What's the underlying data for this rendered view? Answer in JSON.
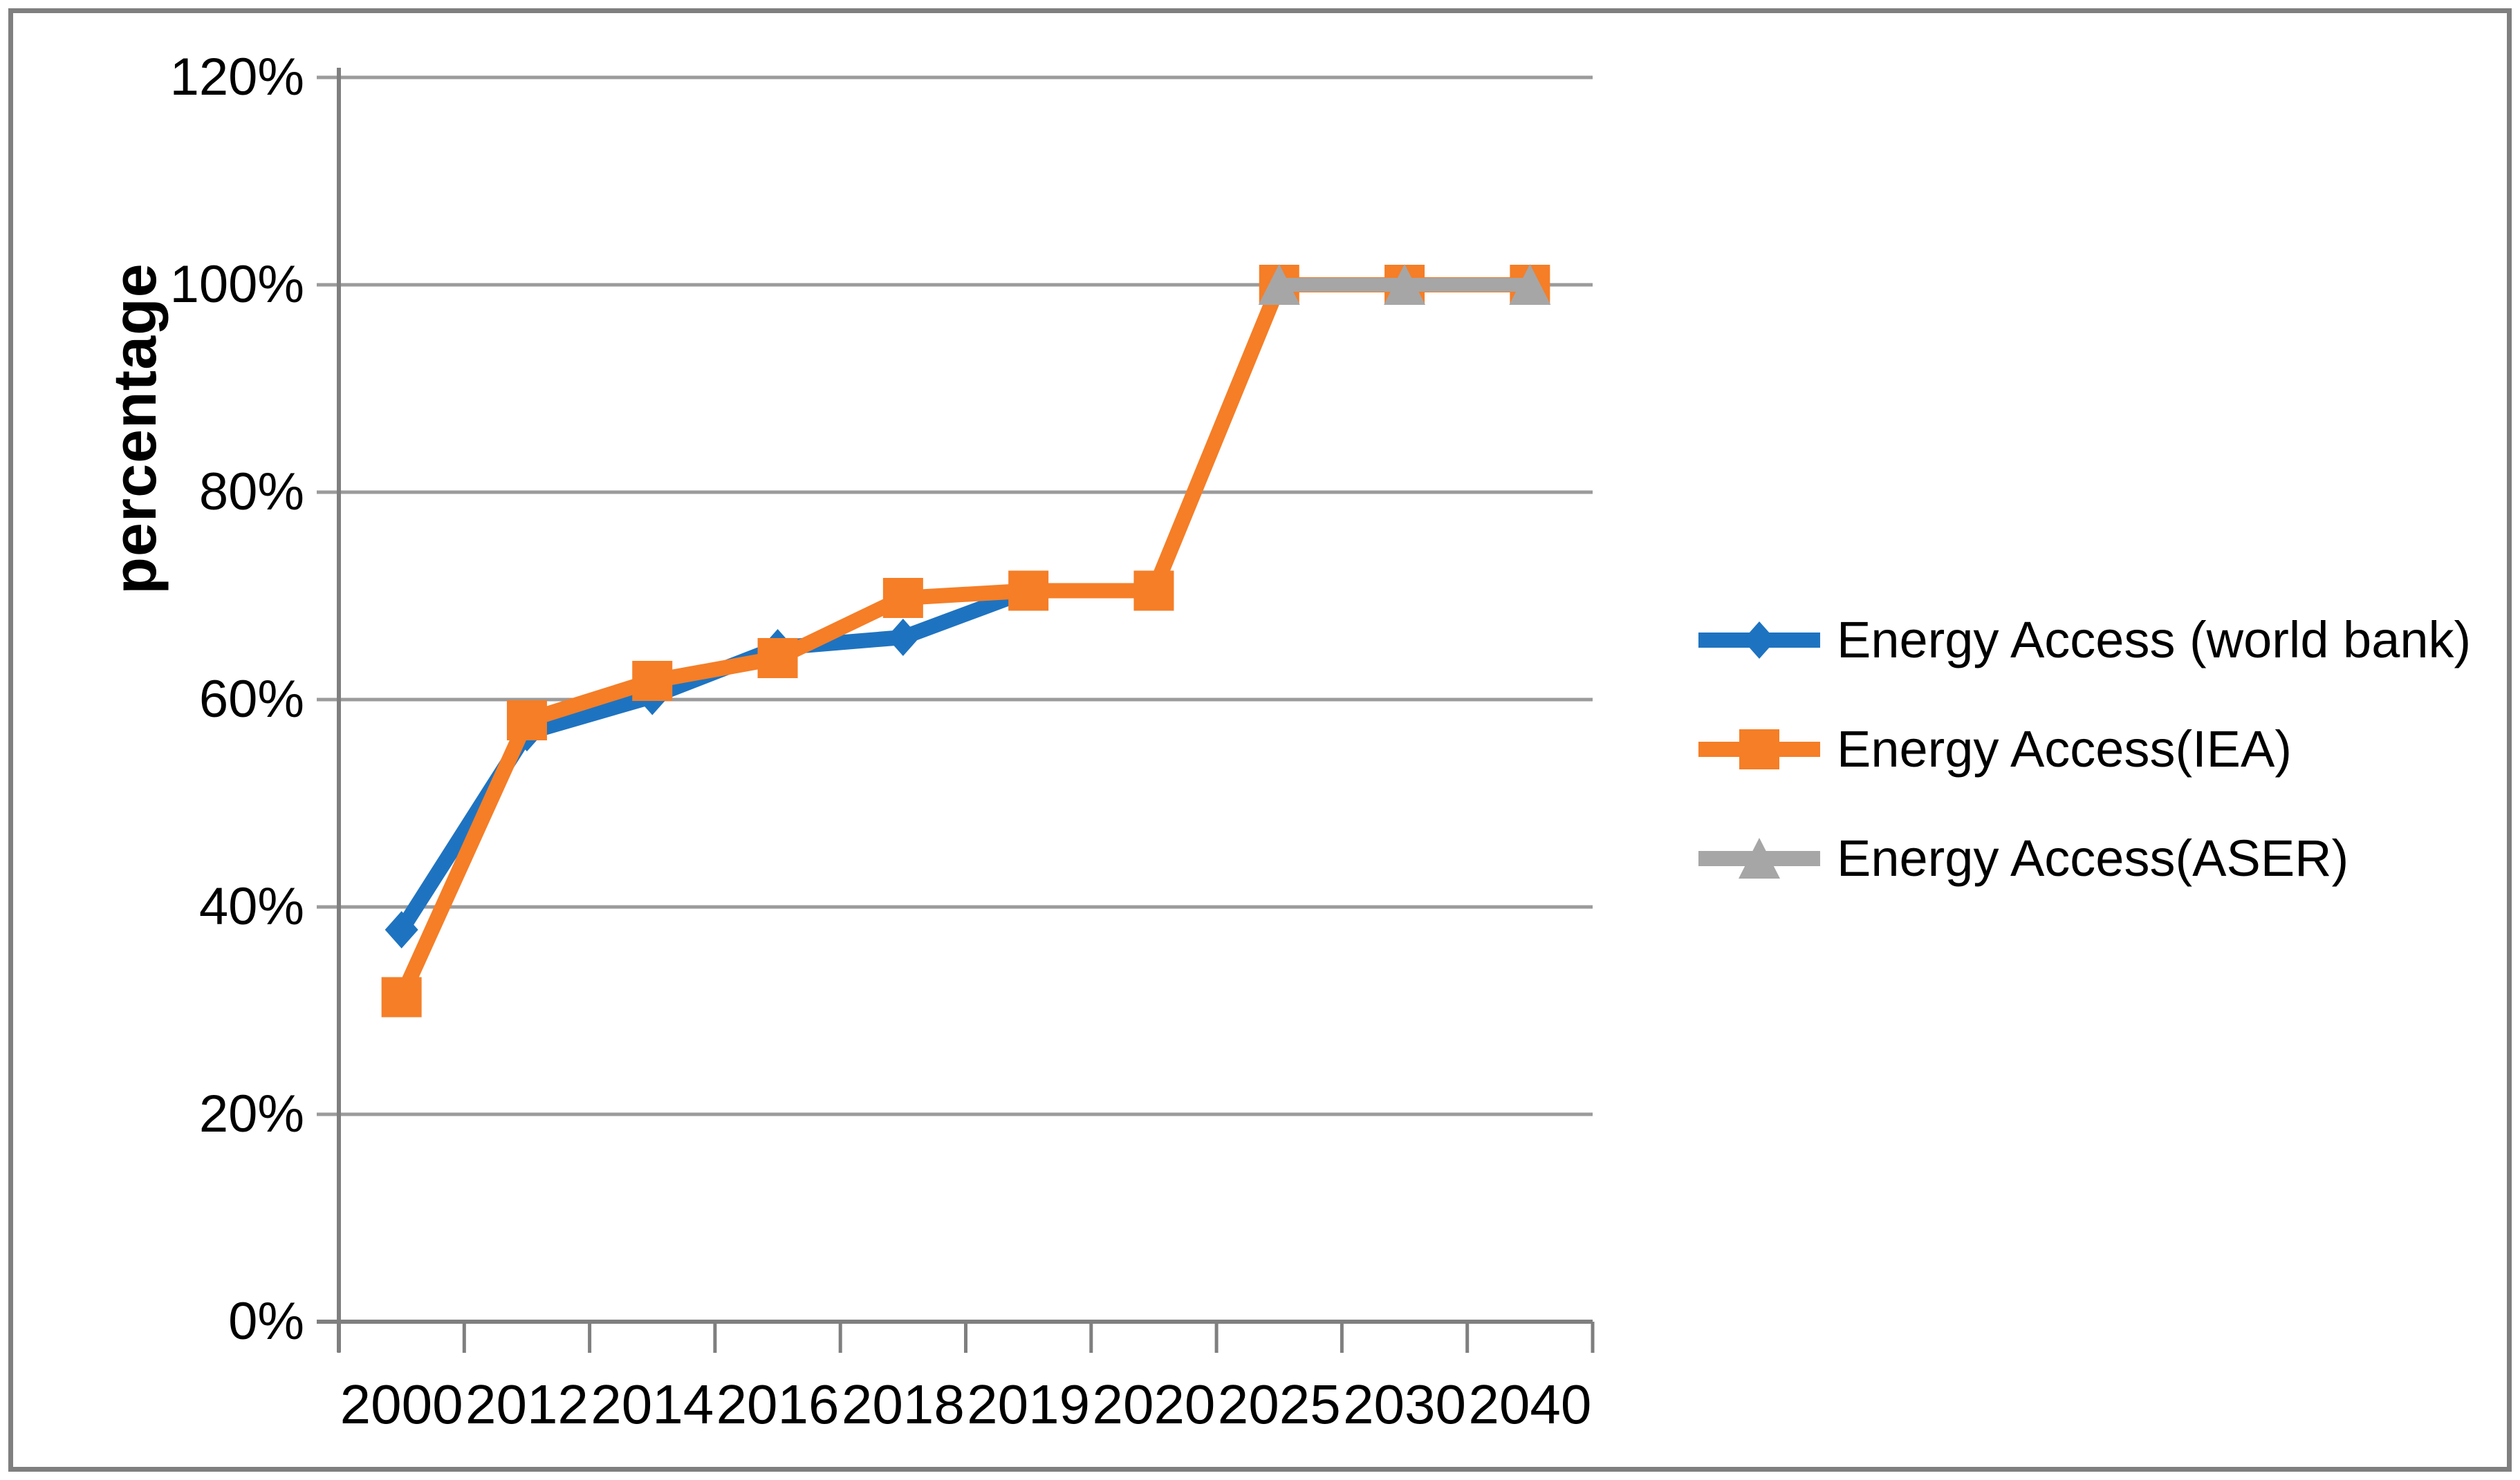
{
  "figure": {
    "background": "#ffffff",
    "border_color": "#7f7f7f"
  },
  "chart_data": {
    "type": "line",
    "title": "",
    "ylabel": "percentage",
    "xlabel": "",
    "ylim": [
      0,
      120
    ],
    "y_tick_step": 20,
    "y_tick_labels": [
      "0%",
      "20%",
      "40%",
      "60%",
      "80%",
      "100%",
      "120%"
    ],
    "categories": [
      "2000",
      "2012",
      "2014",
      "2016",
      "2018",
      "2019",
      "2020",
      "2025",
      "2030",
      "2040"
    ],
    "grid": true,
    "legend_position": "right",
    "axis_color": "#7f7f7f",
    "grid_color": "#9b9b9b",
    "series": [
      {
        "name": "Energy Access (world bank)",
        "color": "#1e73c0",
        "marker": "diamond",
        "values": [
          37.8,
          56.8,
          60.3,
          65,
          66,
          70.5,
          null,
          null,
          null,
          null
        ]
      },
      {
        "name": "Energy Access(IEA)",
        "color": "#f57e27",
        "marker": "square",
        "values": [
          31.3,
          58,
          61.8,
          64,
          69.8,
          70.5,
          70.5,
          100,
          100,
          100
        ]
      },
      {
        "name": "Energy Access(ASER)",
        "color": "#a6a6a6",
        "marker": "triangle",
        "values": [
          null,
          null,
          null,
          null,
          null,
          null,
          null,
          100,
          100,
          100
        ]
      }
    ]
  }
}
